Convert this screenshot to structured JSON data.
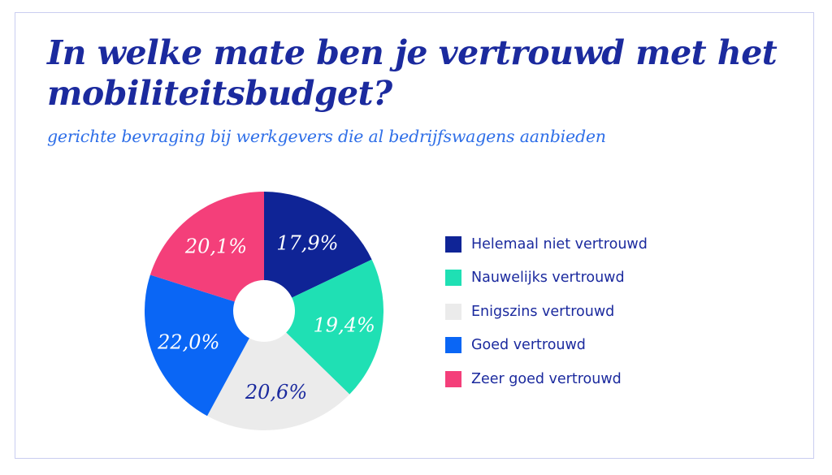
{
  "title": "In welke mate ben je vertrouwd met het mobiliteitsbudget?",
  "subtitle": "gerichte bevraging bij werkgevers die al bedrijfswagens aanbieden",
  "chart_data": {
    "type": "pie",
    "donut": true,
    "title": "In welke mate ben je vertrouwd met het mobiliteitsbudget?",
    "subtitle": "gerichte bevraging bij werkgevers die al bedrijfswagens aanbieden",
    "legend_position": "right",
    "categories": [
      "Helemaal niet vertrouwd",
      "Nauwelijks vertrouwd",
      "Enigszins vertrouwd",
      "Goed vertrouwd",
      "Zeer goed vertrouwd"
    ],
    "values": [
      17.9,
      19.4,
      20.6,
      22.0,
      20.1
    ],
    "labels": [
      "17,9%",
      "19,4%",
      "20,6%",
      "22,0%",
      "20,1%"
    ],
    "colors": [
      "#0f2496",
      "#1fe0b4",
      "#ebebeb",
      "#0a66f5",
      "#f43f7a"
    ],
    "label_colors": [
      "#ffffff",
      "#ffffff",
      "#1b2a9e",
      "#ffffff",
      "#ffffff"
    ]
  }
}
